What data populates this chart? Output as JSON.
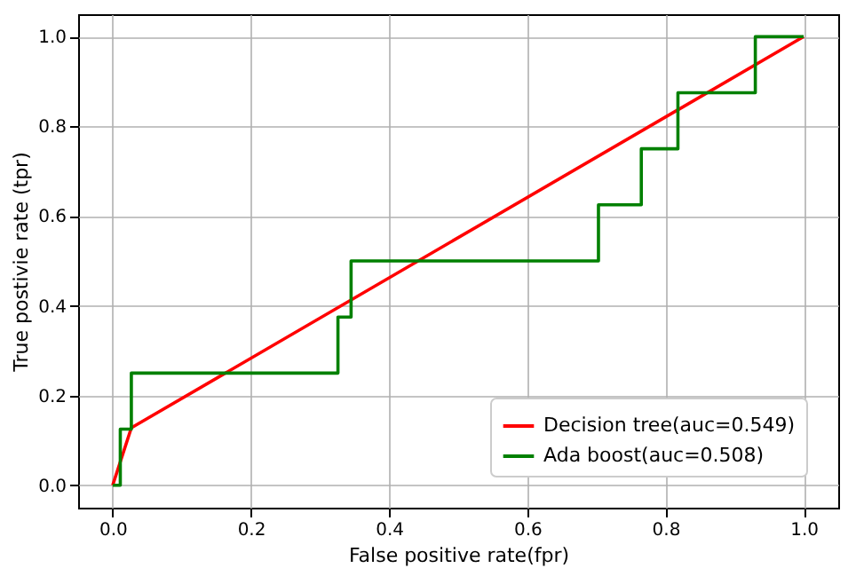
{
  "chart_data": {
    "type": "line",
    "xlabel": "False positive rate(fpr)",
    "ylabel": "True postivie rate (tpr)",
    "xlim": [
      -0.05,
      1.05
    ],
    "ylim": [
      -0.05,
      1.05
    ],
    "xticks": [
      {
        "value": 0,
        "label": "0.0"
      },
      {
        "value": 0.2,
        "label": "0.2"
      },
      {
        "value": 0.4,
        "label": "0.4"
      },
      {
        "value": 0.6,
        "label": "0.6"
      },
      {
        "value": 0.8,
        "label": "0.8"
      },
      {
        "value": 1,
        "label": "1.0"
      }
    ],
    "yticks": [
      {
        "value": 0,
        "label": "0.0"
      },
      {
        "value": 0.2,
        "label": "0.2"
      },
      {
        "value": 0.4,
        "label": "0.4"
      },
      {
        "value": 0.6,
        "label": "0.6"
      },
      {
        "value": 0.8,
        "label": "0.8"
      },
      {
        "value": 1,
        "label": "1.0"
      }
    ],
    "grid": true,
    "legend": "bottom right",
    "marker": "none",
    "line_style": "solid",
    "series": [
      {
        "name": "Decision tree(auc=0.549)",
        "color": "#ff0000",
        "x": [
          0,
          0.027,
          1
        ],
        "values": [
          0,
          0.128,
          1
        ]
      },
      {
        "name": "Ada boost(auc=0.508)",
        "color": "#008000",
        "x": [
          0,
          0.011,
          0.011,
          0.027,
          0.027,
          0.326,
          0.326,
          0.345,
          0.345,
          0.703,
          0.703,
          0.765,
          0.765,
          0.818,
          0.818,
          0.93,
          0.93,
          1
        ],
        "values": [
          0,
          0,
          0.125,
          0.125,
          0.25,
          0.25,
          0.375,
          0.375,
          0.5,
          0.5,
          0.625,
          0.625,
          0.75,
          0.75,
          0.875,
          0.875,
          1,
          1
        ]
      }
    ]
  }
}
